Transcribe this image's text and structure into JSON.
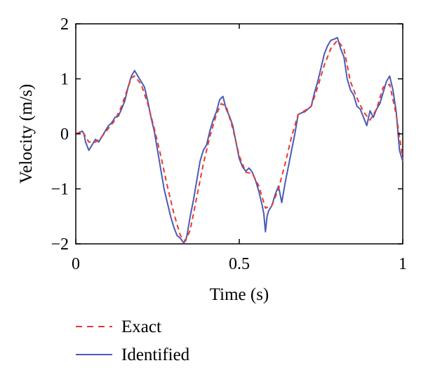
{
  "chart_data": {
    "type": "line",
    "xlabel": "Time (s)",
    "ylabel": "Velocity (m/s)",
    "xlim": [
      0,
      1
    ],
    "ylim": [
      -2,
      2
    ],
    "xticks": [
      0,
      0.5,
      1
    ],
    "xtick_labels": [
      "0",
      "0.5",
      "1"
    ],
    "yticks": [
      -2,
      -1,
      0,
      1,
      2
    ],
    "ytick_labels": [
      "−2",
      "−1",
      "0",
      "1",
      "2"
    ],
    "grid": false,
    "legend_position": "bottom-left, below plot",
    "series": [
      {
        "name": "Exact",
        "color": "#e8392f",
        "style": "dashed",
        "x": [
          0,
          0.02,
          0.04,
          0.06,
          0.08,
          0.1,
          0.12,
          0.14,
          0.16,
          0.17,
          0.18,
          0.2,
          0.22,
          0.24,
          0.26,
          0.28,
          0.3,
          0.32,
          0.335,
          0.35,
          0.37,
          0.39,
          0.41,
          0.43,
          0.445,
          0.46,
          0.48,
          0.5,
          0.52,
          0.54,
          0.56,
          0.58,
          0.6,
          0.62,
          0.64,
          0.66,
          0.68,
          0.7,
          0.72,
          0.74,
          0.76,
          0.78,
          0.8,
          0.82,
          0.84,
          0.86,
          0.88,
          0.9,
          0.92,
          0.94,
          0.96,
          0.98,
          1.0
        ],
        "y": [
          0.0,
          0.05,
          -0.15,
          -0.15,
          -0.05,
          0.1,
          0.25,
          0.5,
          0.85,
          1.02,
          1.05,
          0.9,
          0.55,
          0.1,
          -0.4,
          -0.95,
          -1.45,
          -1.85,
          -1.95,
          -1.75,
          -1.15,
          -0.55,
          -0.05,
          0.35,
          0.55,
          0.5,
          0.1,
          -0.4,
          -0.7,
          -0.72,
          -0.95,
          -1.35,
          -1.3,
          -1.0,
          -0.55,
          -0.05,
          0.35,
          0.42,
          0.5,
          0.85,
          1.25,
          1.55,
          1.7,
          1.55,
          0.95,
          0.65,
          0.4,
          0.25,
          0.45,
          0.85,
          0.9,
          0.35,
          -0.45
        ]
      },
      {
        "name": "Identified",
        "color": "#4a5bb5",
        "style": "solid",
        "x": [
          0,
          0.01,
          0.02,
          0.025,
          0.03,
          0.04,
          0.05,
          0.06,
          0.07,
          0.08,
          0.09,
          0.1,
          0.11,
          0.12,
          0.13,
          0.14,
          0.15,
          0.16,
          0.17,
          0.18,
          0.19,
          0.2,
          0.21,
          0.22,
          0.23,
          0.24,
          0.25,
          0.26,
          0.27,
          0.28,
          0.29,
          0.3,
          0.31,
          0.32,
          0.33,
          0.335,
          0.34,
          0.35,
          0.36,
          0.37,
          0.38,
          0.39,
          0.4,
          0.41,
          0.42,
          0.43,
          0.44,
          0.45,
          0.46,
          0.47,
          0.48,
          0.49,
          0.5,
          0.51,
          0.52,
          0.53,
          0.54,
          0.55,
          0.56,
          0.57,
          0.575,
          0.58,
          0.585,
          0.59,
          0.6,
          0.61,
          0.62,
          0.63,
          0.64,
          0.65,
          0.66,
          0.67,
          0.68,
          0.69,
          0.7,
          0.71,
          0.72,
          0.73,
          0.74,
          0.75,
          0.76,
          0.77,
          0.78,
          0.79,
          0.8,
          0.81,
          0.82,
          0.83,
          0.84,
          0.85,
          0.86,
          0.87,
          0.88,
          0.89,
          0.9,
          0.91,
          0.92,
          0.93,
          0.94,
          0.95,
          0.96,
          0.97,
          0.98,
          0.99,
          1.0
        ],
        "y": [
          0.0,
          0.02,
          0.05,
          0.0,
          -0.15,
          -0.3,
          -0.2,
          -0.1,
          -0.15,
          -0.05,
          0.05,
          0.15,
          0.2,
          0.3,
          0.32,
          0.45,
          0.6,
          0.85,
          1.05,
          1.15,
          1.05,
          0.95,
          0.85,
          0.6,
          0.3,
          0.05,
          -0.3,
          -0.65,
          -1.0,
          -1.25,
          -1.5,
          -1.7,
          -1.85,
          -1.9,
          -1.98,
          -1.95,
          -1.85,
          -1.5,
          -1.2,
          -0.85,
          -0.5,
          -0.3,
          -0.2,
          0.05,
          0.25,
          0.4,
          0.62,
          0.68,
          0.45,
          0.32,
          0.15,
          -0.15,
          -0.45,
          -0.6,
          -0.68,
          -0.62,
          -0.7,
          -0.85,
          -1.05,
          -1.3,
          -1.45,
          -1.78,
          -1.5,
          -1.4,
          -1.3,
          -1.1,
          -0.95,
          -1.25,
          -0.9,
          -0.6,
          -0.3,
          0.0,
          0.35,
          0.38,
          0.4,
          0.45,
          0.5,
          0.75,
          0.95,
          1.2,
          1.45,
          1.6,
          1.7,
          1.72,
          1.75,
          1.55,
          1.4,
          1.0,
          0.8,
          0.7,
          0.5,
          0.45,
          0.3,
          0.15,
          0.42,
          0.3,
          0.45,
          0.55,
          0.75,
          0.95,
          1.05,
          0.8,
          0.4,
          -0.3,
          -0.5
        ]
      }
    ]
  }
}
